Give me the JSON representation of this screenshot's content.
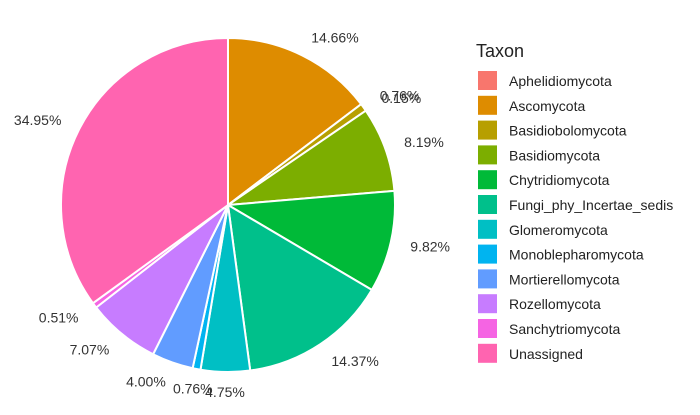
{
  "chart_data": {
    "type": "pie",
    "legend": {
      "title": "Taxon",
      "position": "right"
    },
    "slices": [
      {
        "name": "Aphelidiomycota",
        "value": 0.0,
        "label": "",
        "color": "#F8766D"
      },
      {
        "name": "Ascomycota",
        "value": 14.66,
        "label": "14.66%",
        "color": "#DE8C00"
      },
      {
        "name": "Basidiobolomycota",
        "value": 0.76,
        "label": "0.76%",
        "color": "#B79F00"
      },
      {
        "name": "Basidiomycota",
        "value": 8.19,
        "label": "8.19%",
        "color": "#7CAE00"
      },
      {
        "name": "Chytridiomycota",
        "value": 9.82,
        "label": "9.82%",
        "color": "#00BA38"
      },
      {
        "name": "Fungi_phy_Incertae_sedis",
        "value": 14.37,
        "label": "14.37%",
        "color": "#00C08B"
      },
      {
        "name": "Glomeromycota",
        "value": 4.75,
        "label": "4.75%",
        "color": "#00BFC4"
      },
      {
        "name": "Monoblepharomycota",
        "value": 0.76,
        "label": "0.76%",
        "color": "#00B4F0"
      },
      {
        "name": "Mortierellomycota",
        "value": 4.0,
        "label": "4.00%",
        "color": "#619CFF"
      },
      {
        "name": "Rozellomycota",
        "value": 7.07,
        "label": "7.07%",
        "color": "#C77CFF"
      },
      {
        "name": "Sanchytriomycota",
        "value": 0.51,
        "label": "0.51%",
        "color": "#F564E3"
      },
      {
        "name": "Unassigned",
        "value": 34.95,
        "label": "34.95%",
        "color": "#FF64B0"
      }
    ],
    "extra_labels": [
      {
        "label": "0.15%",
        "at_value": 14.66
      }
    ]
  }
}
